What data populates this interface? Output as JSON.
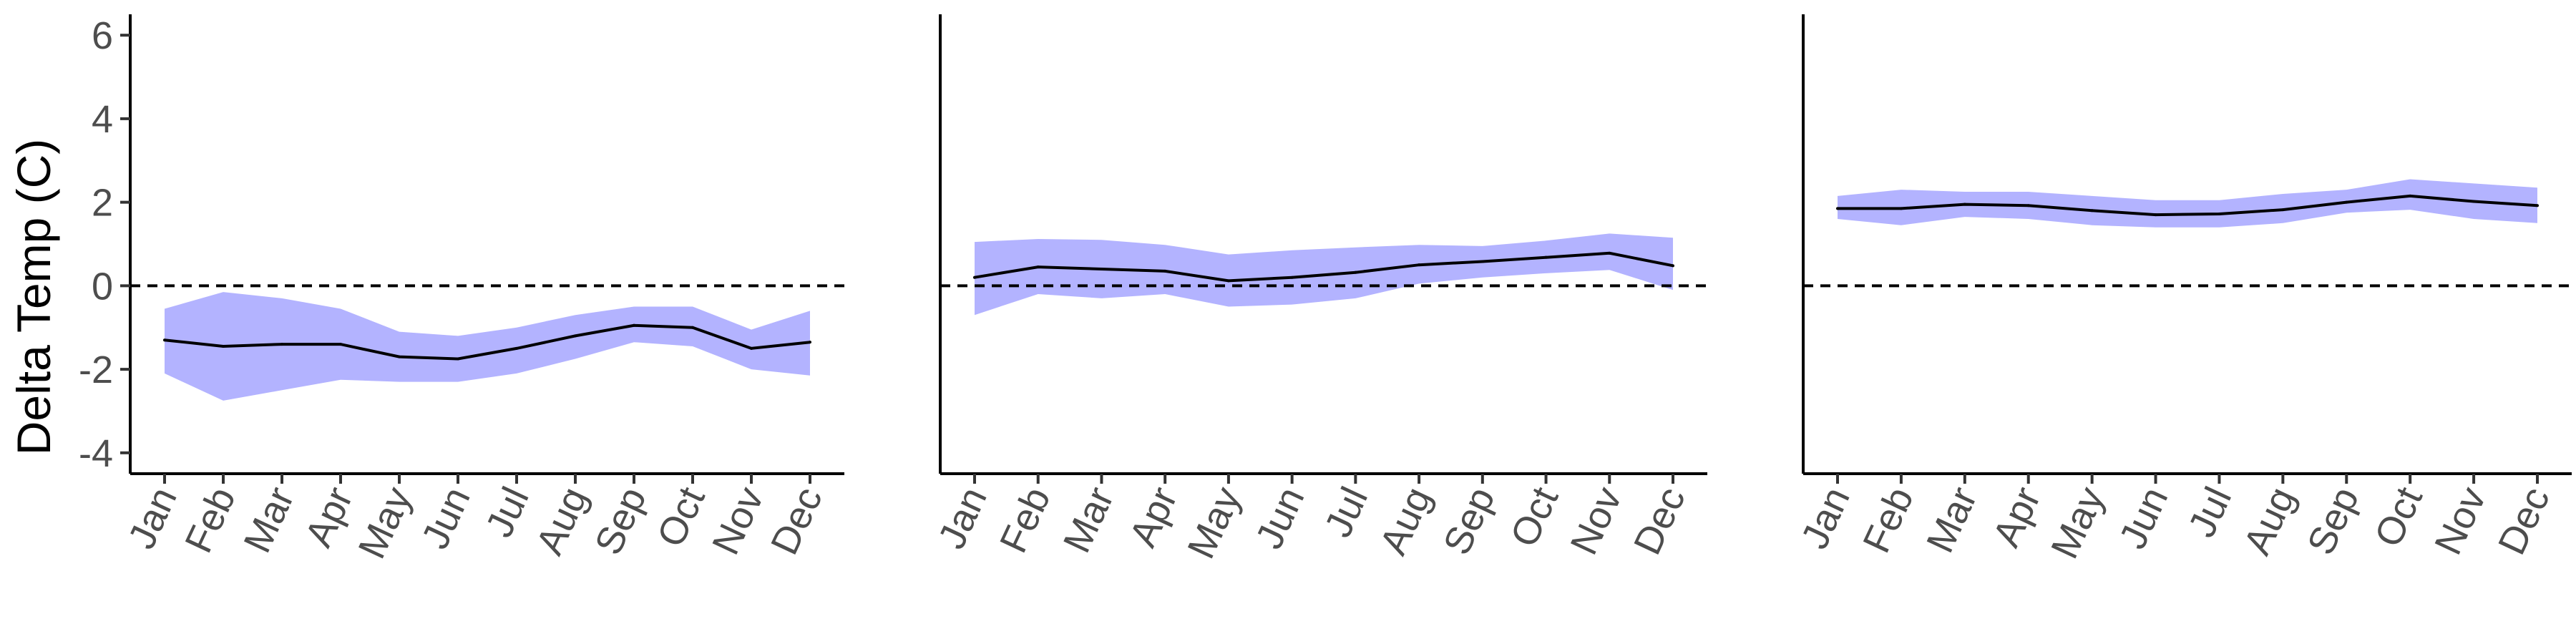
{
  "chart_data": {
    "type": "line",
    "ylabel": "Delta Temp (C)",
    "ylim": [
      -4.5,
      6.5
    ],
    "yticks": [
      -4,
      -2,
      0,
      2,
      4,
      6
    ],
    "categories": [
      "Jan",
      "Feb",
      "Mar",
      "Apr",
      "May",
      "Jun",
      "Jul",
      "Aug",
      "Sep",
      "Oct",
      "Nov",
      "Dec"
    ],
    "reference_line": 0,
    "colors": {
      "ribbon": "#b3b3ff",
      "line": "#000000",
      "reference": "#000000",
      "axis": "#000000"
    },
    "panels": [
      {
        "show_y_ticks": true,
        "mean": [
          -1.3,
          -1.45,
          -1.4,
          -1.4,
          -1.7,
          -1.75,
          -1.5,
          -1.2,
          -0.95,
          -1.0,
          -1.5,
          -1.35
        ],
        "lower": [
          -2.1,
          -2.75,
          -2.5,
          -2.25,
          -2.3,
          -2.3,
          -2.1,
          -1.75,
          -1.35,
          -1.45,
          -2.0,
          -2.15
        ],
        "upper": [
          -0.55,
          -0.15,
          -0.3,
          -0.55,
          -1.1,
          -1.2,
          -1.0,
          -0.7,
          -0.5,
          -0.5,
          -1.05,
          -0.6
        ]
      },
      {
        "show_y_ticks": false,
        "mean": [
          0.2,
          0.45,
          0.4,
          0.35,
          0.12,
          0.2,
          0.32,
          0.5,
          0.58,
          0.68,
          0.78,
          0.48
        ],
        "lower": [
          -0.7,
          -0.2,
          -0.3,
          -0.2,
          -0.5,
          -0.45,
          -0.3,
          0.05,
          0.2,
          0.3,
          0.38,
          -0.1
        ],
        "upper": [
          1.05,
          1.12,
          1.1,
          0.98,
          0.75,
          0.85,
          0.92,
          0.98,
          0.95,
          1.08,
          1.25,
          1.15
        ]
      },
      {
        "show_y_ticks": false,
        "mean": [
          1.85,
          1.85,
          1.95,
          1.92,
          1.8,
          1.7,
          1.72,
          1.82,
          2.0,
          2.15,
          2.02,
          1.92
        ],
        "lower": [
          1.6,
          1.45,
          1.65,
          1.6,
          1.45,
          1.4,
          1.4,
          1.5,
          1.75,
          1.82,
          1.6,
          1.5
        ],
        "upper": [
          2.15,
          2.3,
          2.25,
          2.25,
          2.15,
          2.05,
          2.05,
          2.2,
          2.3,
          2.55,
          2.45,
          2.35
        ]
      }
    ]
  }
}
